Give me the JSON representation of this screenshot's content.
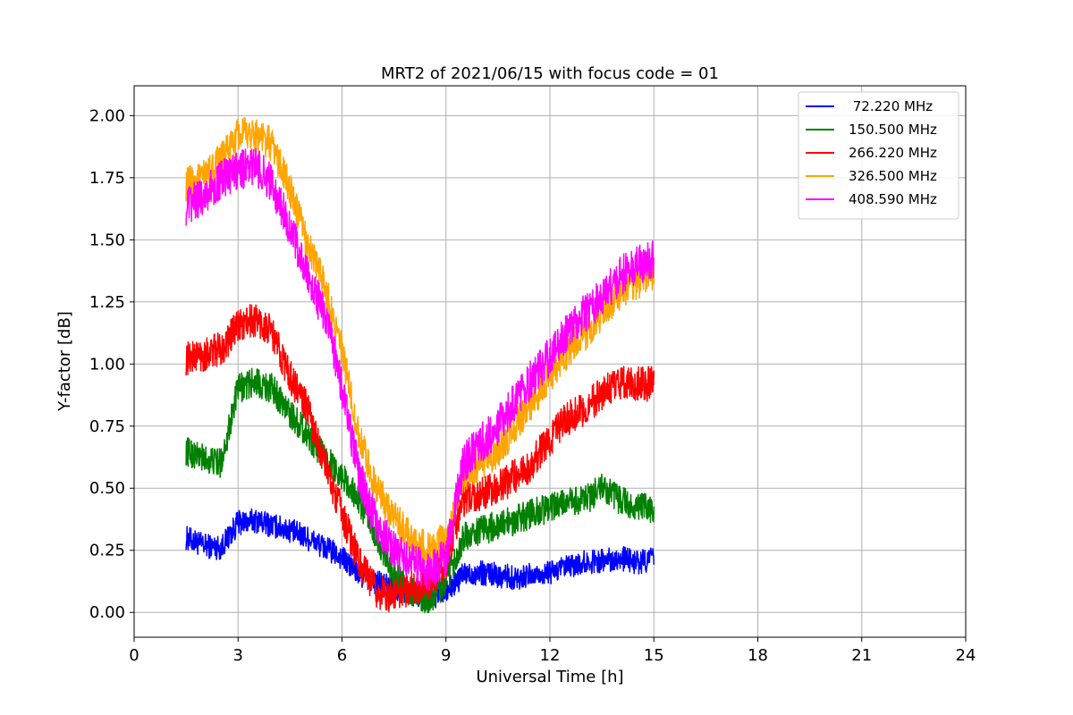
{
  "chart_data": {
    "type": "line",
    "title": "MRT2 of 2021/06/15 with focus code = 01",
    "xlabel": "Universal Time [h]",
    "ylabel": "Y-factor [dB]",
    "xlim": [
      0,
      24
    ],
    "ylim": [
      -0.1,
      2.12
    ],
    "xticks": [
      0,
      3,
      6,
      9,
      12,
      15,
      18,
      21,
      24
    ],
    "xtick_labels": [
      "0",
      "3",
      "6",
      "9",
      "12",
      "15",
      "18",
      "21",
      "24"
    ],
    "yticks": [
      0.0,
      0.25,
      0.5,
      0.75,
      1.0,
      1.25,
      1.5,
      1.75,
      2.0
    ],
    "ytick_labels": [
      "0.00",
      "0.25",
      "0.50",
      "0.75",
      "1.00",
      "1.25",
      "1.50",
      "1.75",
      "2.00"
    ],
    "grid": true,
    "legend_position": "top-right",
    "x": [
      1.5,
      2.0,
      2.5,
      3.0,
      3.5,
      4.0,
      4.5,
      5.0,
      5.5,
      6.0,
      6.5,
      7.0,
      7.5,
      8.0,
      8.5,
      9.0,
      9.5,
      10.0,
      10.5,
      11.0,
      11.5,
      12.0,
      12.5,
      13.0,
      13.5,
      14.0,
      14.5,
      15.0
    ],
    "series": [
      {
        "name": " 72.220 MHz",
        "color": "#0000ff",
        "values": [
          0.3,
          0.27,
          0.26,
          0.36,
          0.37,
          0.35,
          0.33,
          0.3,
          0.26,
          0.22,
          0.15,
          0.12,
          0.1,
          0.08,
          0.06,
          0.08,
          0.15,
          0.16,
          0.15,
          0.14,
          0.15,
          0.16,
          0.18,
          0.2,
          0.21,
          0.22,
          0.2,
          0.22
        ]
      },
      {
        "name": "150.500 MHz",
        "color": "#008000",
        "values": [
          0.65,
          0.62,
          0.6,
          0.9,
          0.93,
          0.9,
          0.8,
          0.72,
          0.62,
          0.55,
          0.45,
          0.3,
          0.15,
          0.08,
          0.05,
          0.12,
          0.3,
          0.33,
          0.35,
          0.37,
          0.4,
          0.42,
          0.44,
          0.45,
          0.5,
          0.45,
          0.42,
          0.42
        ]
      },
      {
        "name": "266.220 MHz",
        "color": "#ff0000",
        "values": [
          1.02,
          1.04,
          1.06,
          1.15,
          1.18,
          1.12,
          0.95,
          0.82,
          0.6,
          0.4,
          0.2,
          0.08,
          0.07,
          0.1,
          0.12,
          0.2,
          0.45,
          0.48,
          0.5,
          0.55,
          0.6,
          0.7,
          0.78,
          0.82,
          0.88,
          0.92,
          0.92,
          0.92
        ]
      },
      {
        "name": "326.500 MHz",
        "color": "#ffa500",
        "values": [
          1.72,
          1.75,
          1.82,
          1.92,
          1.93,
          1.88,
          1.7,
          1.48,
          1.32,
          1.05,
          0.7,
          0.5,
          0.38,
          0.3,
          0.25,
          0.3,
          0.55,
          0.6,
          0.65,
          0.75,
          0.85,
          0.95,
          1.05,
          1.12,
          1.2,
          1.28,
          1.33,
          1.36
        ]
      },
      {
        "name": "408.590 MHz",
        "color": "#ff00ff",
        "values": [
          1.63,
          1.68,
          1.74,
          1.78,
          1.8,
          1.72,
          1.55,
          1.35,
          1.2,
          0.9,
          0.55,
          0.35,
          0.25,
          0.2,
          0.16,
          0.22,
          0.6,
          0.68,
          0.75,
          0.85,
          0.95,
          1.03,
          1.13,
          1.2,
          1.27,
          1.35,
          1.4,
          1.42
        ]
      }
    ]
  }
}
